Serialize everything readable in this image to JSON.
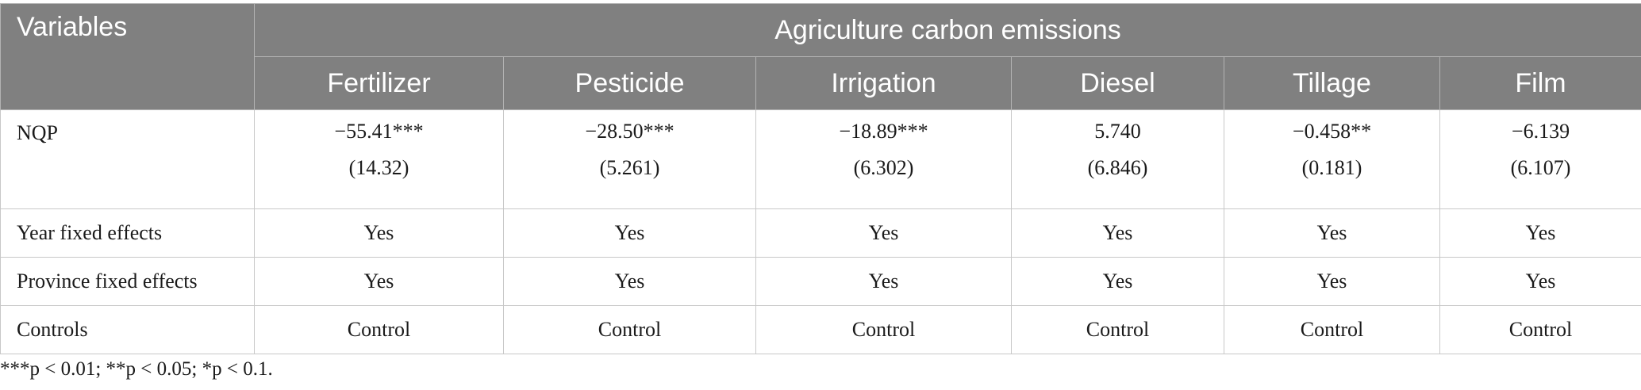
{
  "table": {
    "variables_header": "Variables",
    "group_header": "Agriculture carbon emissions",
    "columns": [
      "Fertilizer",
      "Pesticide",
      "Irrigation",
      "Diesel",
      "Tillage",
      "Film"
    ],
    "rows": {
      "nqp": {
        "label": "NQP",
        "coefficients": [
          "−55.41***",
          "−28.50***",
          "−18.89***",
          "5.740",
          "−0.458**",
          "−6.139"
        ],
        "standard_errors": [
          "(14.32)",
          "(5.261)",
          "(6.302)",
          "(6.846)",
          "(0.181)",
          "(6.107)"
        ]
      },
      "year_fe": {
        "label": "Year fixed effects",
        "values": [
          "Yes",
          "Yes",
          "Yes",
          "Yes",
          "Yes",
          "Yes"
        ]
      },
      "province_fe": {
        "label": "Province fixed effects",
        "values": [
          "Yes",
          "Yes",
          "Yes",
          "Yes",
          "Yes",
          "Yes"
        ]
      },
      "controls": {
        "label": "Controls",
        "values": [
          "Control",
          "Control",
          "Control",
          "Control",
          "Control",
          "Control"
        ]
      }
    },
    "note": "***p < 0.01; **p < 0.05; *p < 0.1."
  },
  "colors": {
    "header_bg": "#808080",
    "header_text": "#ffffff",
    "border": "#c8c8c8"
  }
}
